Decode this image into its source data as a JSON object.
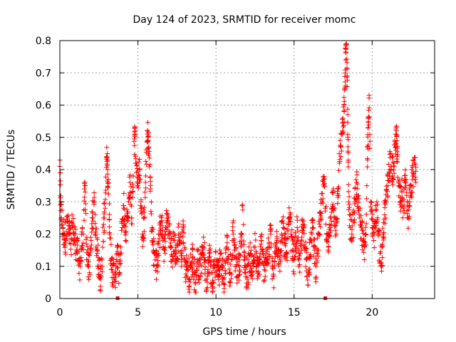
{
  "chart_data": {
    "type": "scatter",
    "title": "Day 124 of 2023, SRMTID for receiver momc",
    "xlabel": "GPS time / hours",
    "ylabel": "SRMTID / TECUs",
    "xlim": [
      0,
      24
    ],
    "ylim": [
      0,
      0.8
    ],
    "xticks": [
      0,
      5,
      10,
      15,
      20
    ],
    "yticks": [
      0,
      0.1,
      0.2,
      0.3,
      0.4,
      0.5,
      0.6,
      0.7,
      0.8
    ],
    "grid": true,
    "marker": "+",
    "color": "#ff0000",
    "series": [
      {
        "name": "SRMTID",
        "points": [
          [
            0.0,
            0.41
          ],
          [
            0.05,
            0.3
          ],
          [
            0.1,
            0.25
          ],
          [
            0.2,
            0.22
          ],
          [
            0.3,
            0.2
          ],
          [
            0.4,
            0.18
          ],
          [
            0.5,
            0.24
          ],
          [
            0.6,
            0.2
          ],
          [
            0.7,
            0.17
          ],
          [
            0.8,
            0.22
          ],
          [
            0.9,
            0.2
          ],
          [
            1.0,
            0.18
          ],
          [
            1.1,
            0.15
          ],
          [
            1.2,
            0.12
          ],
          [
            1.3,
            0.1
          ],
          [
            1.4,
            0.16
          ],
          [
            1.5,
            0.2
          ],
          [
            1.6,
            0.35
          ],
          [
            1.7,
            0.17
          ],
          [
            1.8,
            0.12
          ],
          [
            1.9,
            0.08
          ],
          [
            2.0,
            0.18
          ],
          [
            2.1,
            0.25
          ],
          [
            2.2,
            0.3
          ],
          [
            2.3,
            0.2
          ],
          [
            2.4,
            0.15
          ],
          [
            2.5,
            0.1
          ],
          [
            2.6,
            0.06
          ],
          [
            2.7,
            0.12
          ],
          [
            2.8,
            0.23
          ],
          [
            2.9,
            0.28
          ],
          [
            3.0,
            0.44
          ],
          [
            3.05,
            0.4
          ],
          [
            3.1,
            0.37
          ],
          [
            3.2,
            0.2
          ],
          [
            3.3,
            0.12
          ],
          [
            3.4,
            0.08
          ],
          [
            3.5,
            0.06
          ],
          [
            3.6,
            0.1
          ],
          [
            3.7,
            0.14
          ],
          [
            3.8,
            0.08
          ],
          [
            3.9,
            0.16
          ],
          [
            4.0,
            0.22
          ],
          [
            4.1,
            0.28
          ],
          [
            4.2,
            0.18
          ],
          [
            4.3,
            0.24
          ],
          [
            4.4,
            0.3
          ],
          [
            4.5,
            0.36
          ],
          [
            4.6,
            0.25
          ],
          [
            4.7,
            0.38
          ],
          [
            4.8,
            0.51
          ],
          [
            4.9,
            0.42
          ],
          [
            5.0,
            0.35
          ],
          [
            5.1,
            0.4
          ],
          [
            5.2,
            0.3
          ],
          [
            5.3,
            0.2
          ],
          [
            5.4,
            0.25
          ],
          [
            5.5,
            0.38
          ],
          [
            5.6,
            0.52
          ],
          [
            5.65,
            0.5
          ],
          [
            5.7,
            0.47
          ],
          [
            5.8,
            0.34
          ],
          [
            5.9,
            0.22
          ],
          [
            6.0,
            0.15
          ],
          [
            6.1,
            0.12
          ],
          [
            6.2,
            0.1
          ],
          [
            6.3,
            0.14
          ],
          [
            6.4,
            0.2
          ],
          [
            6.5,
            0.24
          ],
          [
            6.6,
            0.18
          ],
          [
            6.7,
            0.15
          ],
          [
            6.8,
            0.22
          ],
          [
            6.9,
            0.26
          ],
          [
            7.0,
            0.2
          ],
          [
            7.1,
            0.16
          ],
          [
            7.2,
            0.13
          ],
          [
            7.3,
            0.18
          ],
          [
            7.4,
            0.15
          ],
          [
            7.5,
            0.12
          ],
          [
            7.6,
            0.2
          ],
          [
            7.7,
            0.17
          ],
          [
            7.8,
            0.14
          ],
          [
            7.9,
            0.22
          ],
          [
            8.0,
            0.12
          ],
          [
            8.1,
            0.09
          ],
          [
            8.2,
            0.11
          ],
          [
            8.3,
            0.06
          ],
          [
            8.4,
            0.1
          ],
          [
            8.5,
            0.13
          ],
          [
            8.6,
            0.08
          ],
          [
            8.7,
            0.05
          ],
          [
            8.8,
            0.12
          ],
          [
            8.9,
            0.1
          ],
          [
            9.0,
            0.07
          ],
          [
            9.1,
            0.14
          ],
          [
            9.2,
            0.19
          ],
          [
            9.3,
            0.09
          ],
          [
            9.4,
            0.06
          ],
          [
            9.5,
            0.11
          ],
          [
            9.6,
            0.13
          ],
          [
            9.7,
            0.08
          ],
          [
            9.8,
            0.05
          ],
          [
            9.9,
            0.1
          ],
          [
            10.0,
            0.12
          ],
          [
            10.1,
            0.07
          ],
          [
            10.2,
            0.09
          ],
          [
            10.3,
            0.14
          ],
          [
            10.4,
            0.1
          ],
          [
            10.5,
            0.06
          ],
          [
            10.6,
            0.11
          ],
          [
            10.7,
            0.16
          ],
          [
            10.8,
            0.13
          ],
          [
            10.9,
            0.08
          ],
          [
            11.0,
            0.12
          ],
          [
            11.1,
            0.2
          ],
          [
            11.2,
            0.15
          ],
          [
            11.3,
            0.1
          ],
          [
            11.4,
            0.07
          ],
          [
            11.5,
            0.12
          ],
          [
            11.6,
            0.16
          ],
          [
            11.7,
            0.29
          ],
          [
            11.8,
            0.13
          ],
          [
            11.9,
            0.09
          ],
          [
            12.0,
            0.06
          ],
          [
            12.1,
            0.11
          ],
          [
            12.2,
            0.14
          ],
          [
            12.3,
            0.08
          ],
          [
            12.4,
            0.12
          ],
          [
            12.5,
            0.16
          ],
          [
            12.6,
            0.1
          ],
          [
            12.7,
            0.07
          ],
          [
            12.8,
            0.13
          ],
          [
            12.9,
            0.18
          ],
          [
            13.0,
            0.11
          ],
          [
            13.1,
            0.09
          ],
          [
            13.2,
            0.14
          ],
          [
            13.3,
            0.12
          ],
          [
            13.4,
            0.16
          ],
          [
            13.5,
            0.2
          ],
          [
            13.6,
            0.1
          ],
          [
            13.7,
            0.07
          ],
          [
            13.8,
            0.13
          ],
          [
            13.9,
            0.18
          ],
          [
            14.0,
            0.15
          ],
          [
            14.1,
            0.12
          ],
          [
            14.2,
            0.2
          ],
          [
            14.3,
            0.22
          ],
          [
            14.4,
            0.17
          ],
          [
            14.5,
            0.14
          ],
          [
            14.6,
            0.19
          ],
          [
            14.7,
            0.25
          ],
          [
            14.8,
            0.2
          ],
          [
            14.9,
            0.15
          ],
          [
            15.0,
            0.12
          ],
          [
            15.1,
            0.17
          ],
          [
            15.2,
            0.22
          ],
          [
            15.3,
            0.1
          ],
          [
            15.4,
            0.14
          ],
          [
            15.5,
            0.19
          ],
          [
            15.6,
            0.24
          ],
          [
            15.7,
            0.16
          ],
          [
            15.8,
            0.12
          ],
          [
            15.9,
            0.08
          ],
          [
            16.0,
            0.13
          ],
          [
            16.1,
            0.18
          ],
          [
            16.2,
            0.22
          ],
          [
            16.3,
            0.15
          ],
          [
            16.4,
            0.1
          ],
          [
            16.5,
            0.14
          ],
          [
            16.6,
            0.2
          ],
          [
            16.7,
            0.25
          ],
          [
            16.8,
            0.3
          ],
          [
            16.9,
            0.37
          ],
          [
            17.0,
            0.28
          ],
          [
            17.1,
            0.2
          ],
          [
            17.2,
            0.16
          ],
          [
            17.3,
            0.22
          ],
          [
            17.4,
            0.28
          ],
          [
            17.5,
            0.33
          ],
          [
            17.6,
            0.25
          ],
          [
            17.7,
            0.2
          ],
          [
            17.8,
            0.32
          ],
          [
            17.9,
            0.42
          ],
          [
            18.0,
            0.47
          ],
          [
            18.1,
            0.52
          ],
          [
            18.2,
            0.58
          ],
          [
            18.25,
            0.65
          ],
          [
            18.3,
            0.74
          ],
          [
            18.35,
            0.79
          ],
          [
            18.4,
            0.69
          ],
          [
            18.45,
            0.5
          ],
          [
            18.5,
            0.3
          ],
          [
            18.6,
            0.22
          ],
          [
            18.7,
            0.2
          ],
          [
            18.8,
            0.24
          ],
          [
            18.9,
            0.3
          ],
          [
            19.0,
            0.36
          ],
          [
            19.1,
            0.28
          ],
          [
            19.2,
            0.25
          ],
          [
            19.3,
            0.22
          ],
          [
            19.4,
            0.18
          ],
          [
            19.5,
            0.16
          ],
          [
            19.6,
            0.2
          ],
          [
            19.7,
            0.47
          ],
          [
            19.75,
            0.53
          ],
          [
            19.8,
            0.63
          ],
          [
            19.9,
            0.3
          ],
          [
            20.0,
            0.22
          ],
          [
            20.1,
            0.18
          ],
          [
            20.2,
            0.24
          ],
          [
            20.3,
            0.3
          ],
          [
            20.4,
            0.2
          ],
          [
            20.5,
            0.14
          ],
          [
            20.6,
            0.1
          ],
          [
            20.7,
            0.2
          ],
          [
            20.8,
            0.26
          ],
          [
            20.9,
            0.3
          ],
          [
            21.0,
            0.35
          ],
          [
            21.1,
            0.4
          ],
          [
            21.2,
            0.45
          ],
          [
            21.3,
            0.38
          ],
          [
            21.4,
            0.42
          ],
          [
            21.5,
            0.48
          ],
          [
            21.55,
            0.51
          ],
          [
            21.6,
            0.44
          ],
          [
            21.7,
            0.35
          ],
          [
            21.8,
            0.3
          ],
          [
            21.9,
            0.33
          ],
          [
            22.0,
            0.28
          ],
          [
            22.1,
            0.36
          ],
          [
            22.2,
            0.32
          ],
          [
            22.3,
            0.25
          ],
          [
            22.4,
            0.3
          ],
          [
            22.5,
            0.35
          ],
          [
            22.6,
            0.38
          ],
          [
            22.7,
            0.42
          ],
          [
            22.8,
            0.36
          ]
        ]
      }
    ],
    "zero_markers": [
      3.7,
      17.0
    ]
  }
}
